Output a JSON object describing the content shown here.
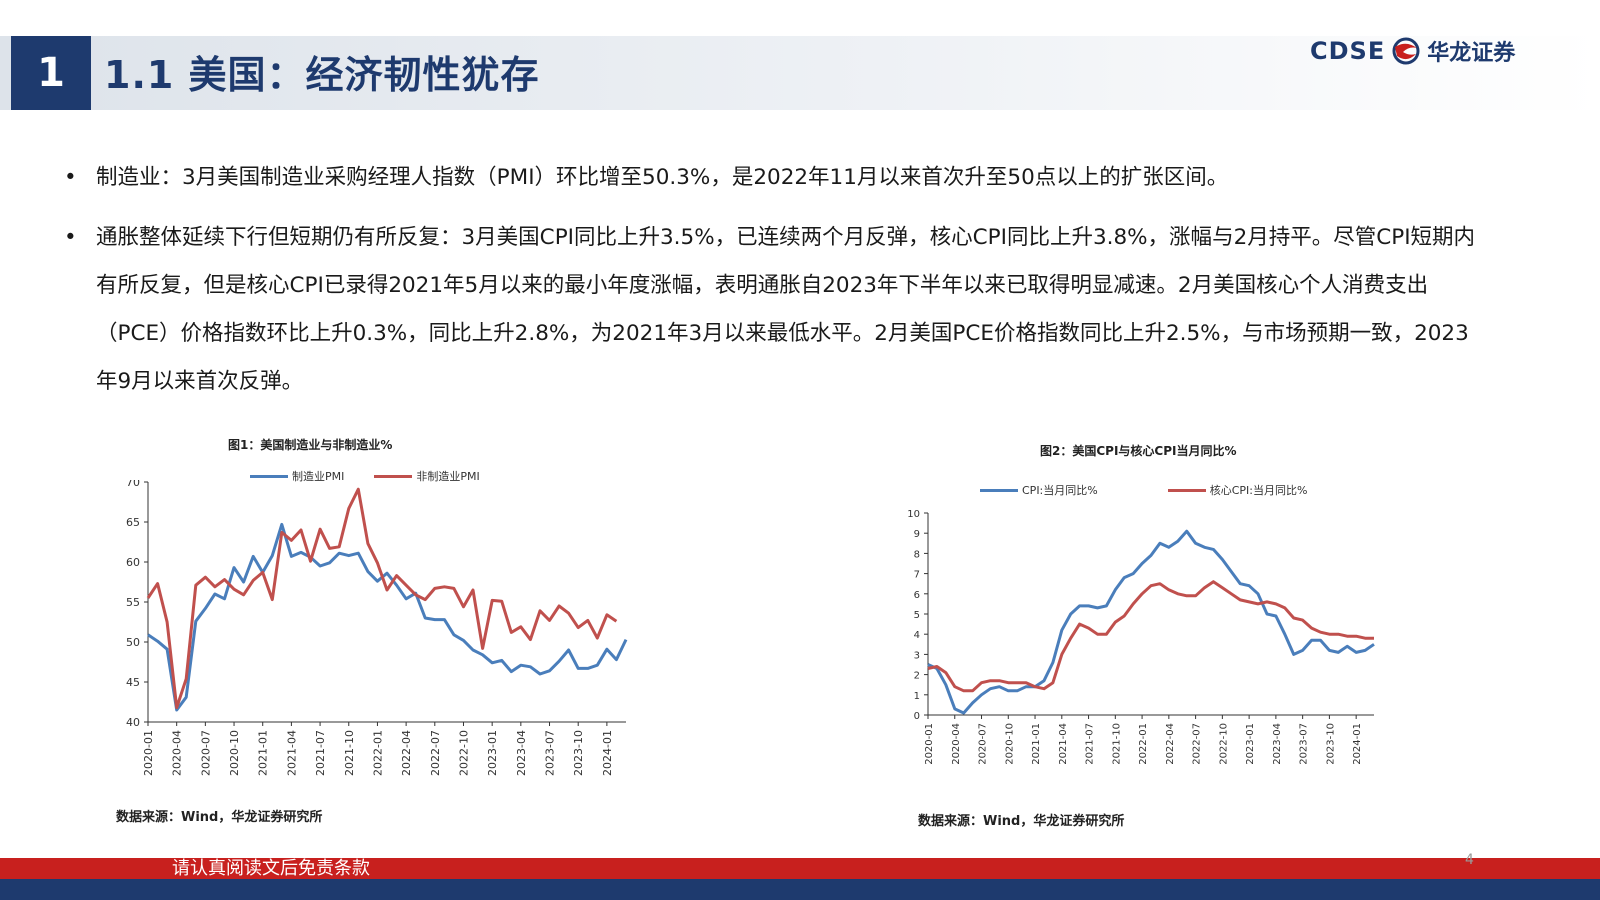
{
  "header": {
    "section_number": "1",
    "title": "1.1 美国：经济韧性犹存",
    "logo_text": "CDSE",
    "logo_cn": "华龙证券",
    "colors": {
      "brand_blue": "#1e3a6e",
      "brand_red": "#c8201e"
    }
  },
  "bullets": [
    {
      "marker": "•",
      "text": "制造业：3月美国制造业采购经理人指数（PMI）环比增至50.3%，是2022年11月以来首次升至50点以上的扩张区间。"
    },
    {
      "marker": "•",
      "text": "通胀整体延续下行但短期仍有所反复：3月美国CPI同比上升3.5%，已连续两个月反弹，核心CPI同比上升3.8%，涨幅与2月持平。尽管CPI短期内有所反复，但是核心CPI已录得2021年5月以来的最小年度涨幅，表明通胀自2023年下半年以来已取得明显减速。2月美国核心个人消费支出（PCE）价格指数环比上升0.3%，同比上升2.8%，为2021年3月以来最低水平。2月美国PCE价格指数同比上升2.5%，与市场预期一致，2023年9月以来首次反弹。"
    }
  ],
  "chart_data": [
    {
      "type": "line",
      "title": "图1：美国制造业与非制造业%",
      "source": "数据来源：Wind，华龙证券研究所",
      "x_start": "2020-01",
      "tick_labels": [
        "2020-01",
        "2020-04",
        "2020-07",
        "2020-10",
        "2021-01",
        "2021-04",
        "2021-07",
        "2021-10",
        "2022-01",
        "2022-04",
        "2022-07",
        "2022-10",
        "2023-01",
        "2023-04",
        "2023-07",
        "2023-10",
        "2024-01"
      ],
      "ylim": [
        40,
        70
      ],
      "yticks": [
        40,
        45,
        50,
        55,
        60,
        65,
        70
      ],
      "legend_position": "top",
      "series": [
        {
          "name": "制造业PMI",
          "color": "#4a7ebb",
          "values": [
            50.9,
            50.1,
            49.1,
            41.5,
            43.1,
            52.6,
            54.2,
            56.0,
            55.4,
            59.3,
            57.5,
            60.7,
            58.7,
            60.8,
            64.7,
            60.7,
            61.2,
            60.6,
            59.5,
            59.9,
            61.1,
            60.8,
            61.1,
            58.8,
            57.6,
            58.6,
            57.1,
            55.4,
            56.1,
            53.0,
            52.8,
            52.8,
            50.9,
            50.2,
            49.0,
            48.4,
            47.4,
            47.7,
            46.3,
            47.1,
            46.9,
            46.0,
            46.4,
            47.6,
            49.0,
            46.7,
            46.7,
            47.1,
            49.1,
            47.8,
            50.3
          ]
        },
        {
          "name": "非制造业PMI",
          "color": "#c0504d",
          "values": [
            55.5,
            57.3,
            52.5,
            41.8,
            45.4,
            57.1,
            58.1,
            56.9,
            57.8,
            56.6,
            55.9,
            57.7,
            58.7,
            55.3,
            63.7,
            62.7,
            64.0,
            60.1,
            64.1,
            61.7,
            61.9,
            66.7,
            69.1,
            62.3,
            59.9,
            56.5,
            58.3,
            57.1,
            55.9,
            55.3,
            56.7,
            56.9,
            56.7,
            54.4,
            56.5,
            49.2,
            55.2,
            55.1,
            51.2,
            51.9,
            50.3,
            53.9,
            52.7,
            54.5,
            53.6,
            51.8,
            52.7,
            50.5,
            53.4,
            52.6
          ]
        }
      ]
    },
    {
      "type": "line",
      "title": "图2：美国CPI与核心CPI当月同比%",
      "source": "数据来源：Wind，华龙证券研究所",
      "x_start": "2020-01",
      "tick_labels": [
        "2020-01",
        "2020-04",
        "2020-07",
        "2020-10",
        "2021-01",
        "2021-04",
        "2021-07",
        "2021-10",
        "2022-01",
        "2022-04",
        "2022-07",
        "2022-10",
        "2023-01",
        "2023-04",
        "2023-07",
        "2023-10",
        "2024-01"
      ],
      "ylim": [
        0,
        10
      ],
      "yticks": [
        0,
        1,
        2,
        3,
        4,
        5,
        6,
        7,
        8,
        9,
        10
      ],
      "legend_position": "top",
      "series": [
        {
          "name": "CPI:当月同比%",
          "color": "#4a7ebb",
          "values": [
            2.5,
            2.3,
            1.5,
            0.3,
            0.1,
            0.6,
            1.0,
            1.3,
            1.4,
            1.2,
            1.2,
            1.4,
            1.4,
            1.7,
            2.6,
            4.2,
            5.0,
            5.4,
            5.4,
            5.3,
            5.4,
            6.2,
            6.8,
            7.0,
            7.5,
            7.9,
            8.5,
            8.3,
            8.6,
            9.1,
            8.5,
            8.3,
            8.2,
            7.7,
            7.1,
            6.5,
            6.4,
            6.0,
            5.0,
            4.9,
            4.0,
            3.0,
            3.2,
            3.7,
            3.7,
            3.2,
            3.1,
            3.4,
            3.1,
            3.2,
            3.5
          ]
        },
        {
          "name": "核心CPI:当月同比%",
          "color": "#c0504d",
          "values": [
            2.3,
            2.4,
            2.1,
            1.4,
            1.2,
            1.2,
            1.6,
            1.7,
            1.7,
            1.6,
            1.6,
            1.6,
            1.4,
            1.3,
            1.6,
            3.0,
            3.8,
            4.5,
            4.3,
            4.0,
            4.0,
            4.6,
            4.9,
            5.5,
            6.0,
            6.4,
            6.5,
            6.2,
            6.0,
            5.9,
            5.9,
            6.3,
            6.6,
            6.3,
            6.0,
            5.7,
            5.6,
            5.5,
            5.6,
            5.5,
            5.3,
            4.8,
            4.7,
            4.3,
            4.1,
            4.0,
            4.0,
            3.9,
            3.9,
            3.8,
            3.8
          ]
        }
      ]
    }
  ],
  "footer": {
    "disclaimer": "请认真阅读文后免责条款",
    "page_number": "4"
  }
}
